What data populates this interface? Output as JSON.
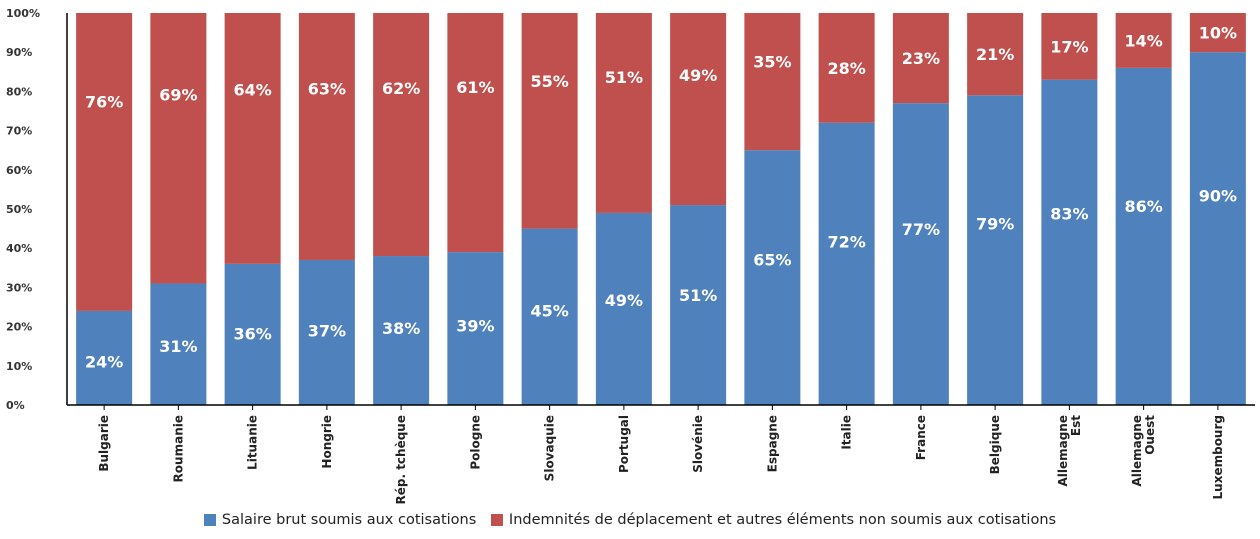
{
  "chart_data": {
    "type": "bar",
    "stacked": true,
    "categories": [
      "Bulgarie",
      "Roumanie",
      "Lituanie",
      "Hongrie",
      "Rép. tchèque",
      "Pologne",
      "Slovaquie",
      "Portugal",
      "Slovénie",
      "Espagne",
      "Italie",
      "France",
      "Belgique",
      "Allemagne Est",
      "Allemagne Ouest",
      "Luxembourg"
    ],
    "series": [
      {
        "name": "Salaire brut soumis aux cotisations",
        "color": "#4F81BD",
        "values": [
          24,
          31,
          36,
          37,
          38,
          39,
          45,
          49,
          51,
          65,
          72,
          77,
          79,
          83,
          86,
          90
        ],
        "labels": [
          "24%",
          "31%",
          "36%",
          "37%",
          "38%",
          "39%",
          "45%",
          "49%",
          "51%",
          "65%",
          "72%",
          "77%",
          "79%",
          "83%",
          "86%",
          "90%"
        ]
      },
      {
        "name": "Indemnités de déplacement et autres éléments non soumis aux cotisations",
        "color": "#C0504D",
        "values": [
          76,
          69,
          64,
          63,
          62,
          61,
          55,
          51,
          49,
          35,
          28,
          23,
          21,
          17,
          14,
          10
        ],
        "labels": [
          "76%",
          "69%",
          "64%",
          "63%",
          "62%",
          "61%",
          "55%",
          "51%",
          "49%",
          "35%",
          "28%",
          "23%",
          "21%",
          "17%",
          "14%",
          "10%"
        ]
      }
    ],
    "y_ticks": [
      "0%",
      "10%",
      "20%",
      "30%",
      "40%",
      "50%",
      "60%",
      "70%",
      "80%",
      "90%",
      "100%"
    ],
    "ylim": [
      0,
      100
    ],
    "grid": false,
    "legend_position": "bottom"
  }
}
